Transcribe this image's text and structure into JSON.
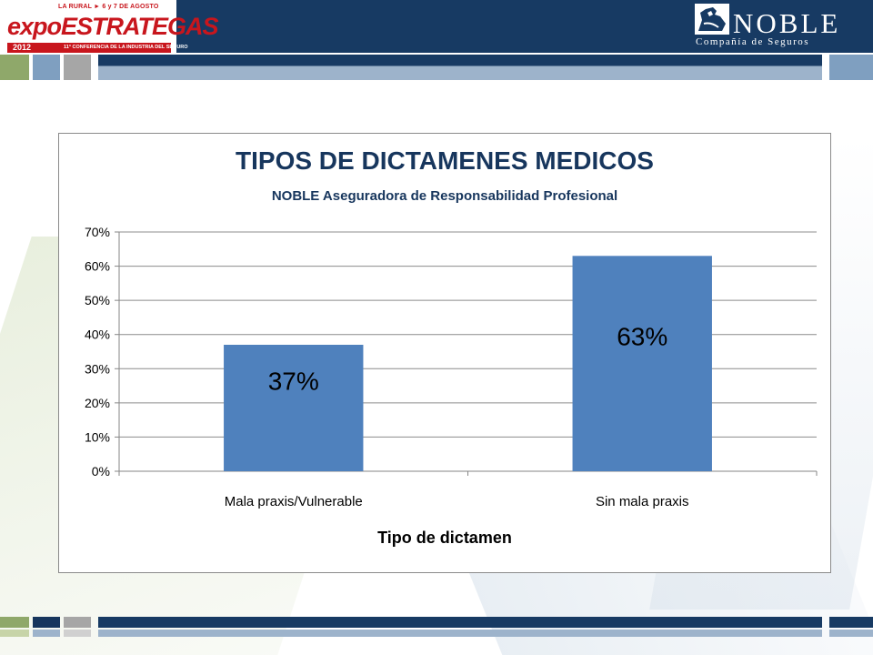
{
  "header": {
    "expo_logo": {
      "venue_date": "LA RURAL ► 6 y 7 DE AGOSTO",
      "word_a": "expo",
      "word_b": "ESTRATEGAS",
      "year": "2012",
      "conference": "11° CONFERENCIA DE LA INDUSTRIA DEL SEGURO"
    },
    "noble_logo": {
      "name": "NOBLE",
      "tagline": "Compañía de Seguros"
    }
  },
  "colors": {
    "header_navy": "#173a63",
    "stripe_green": "#8fa86a",
    "stripe_gray": "#a6a6a6",
    "stripe_blue": "#7f9fc0",
    "bar_fill": "#4f81bd",
    "title_color": "#17365d"
  },
  "chart_data": {
    "type": "bar",
    "title": "TIPOS DE DICTAMENES MEDICOS",
    "subtitle": "NOBLE Aseguradora de Responsabilidad Profesional",
    "xlabel": "Tipo de dictamen",
    "ylabel": "",
    "categories": [
      "Mala praxis/Vulnerable",
      "Sin mala praxis"
    ],
    "values": [
      37,
      63
    ],
    "data_labels": [
      "37%",
      "63%"
    ],
    "ylim": [
      0,
      70
    ],
    "y_ticks": [
      "0%",
      "10%",
      "20%",
      "30%",
      "40%",
      "50%",
      "60%",
      "70%"
    ],
    "grid": true,
    "legend": "none"
  }
}
